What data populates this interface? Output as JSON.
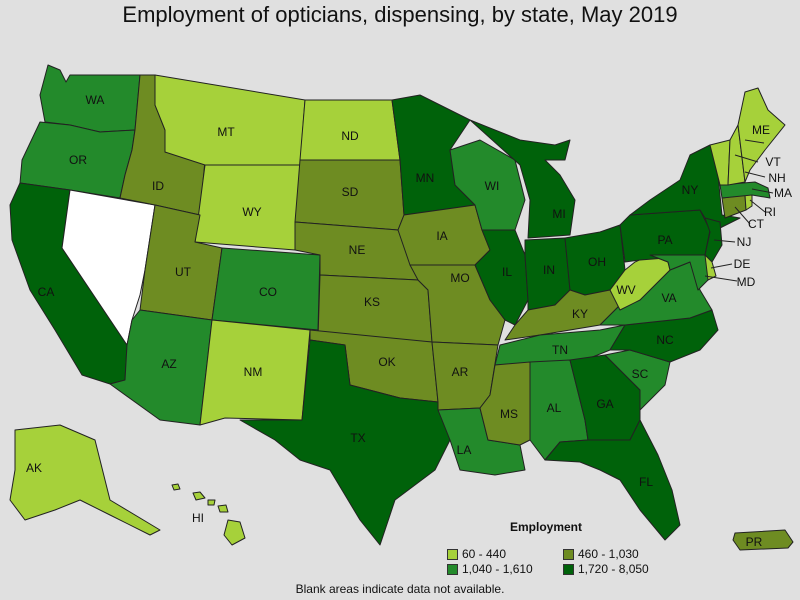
{
  "title": "Employment of opticians, dispensing, by state, May 2019",
  "footnote": "Blank areas indicate data not available.",
  "colors": {
    "background": "#e0e0e0",
    "tier1": "#a6d13a",
    "tier2": "#6e8c22",
    "tier3": "#238a2b",
    "tier4": "#00620a",
    "na": "#ffffff"
  },
  "legend": {
    "title": "Employment",
    "items": [
      {
        "label": "60 - 440",
        "tier": "tier1"
      },
      {
        "label": "460 - 1,030",
        "tier": "tier2"
      },
      {
        "label": "1,040 - 1,610",
        "tier": "tier3"
      },
      {
        "label": "1,720 - 8,050",
        "tier": "tier4"
      }
    ]
  },
  "states": {
    "WA": {
      "label": "WA",
      "tier": "tier3"
    },
    "OR": {
      "label": "OR",
      "tier": "tier3"
    },
    "CA": {
      "label": "CA",
      "tier": "tier4"
    },
    "NV": {
      "label": "",
      "tier": "na"
    },
    "ID": {
      "label": "ID",
      "tier": "tier2"
    },
    "MT": {
      "label": "MT",
      "tier": "tier1"
    },
    "WY": {
      "label": "WY",
      "tier": "tier1"
    },
    "UT": {
      "label": "UT",
      "tier": "tier2"
    },
    "AZ": {
      "label": "AZ",
      "tier": "tier3"
    },
    "CO": {
      "label": "CO",
      "tier": "tier3"
    },
    "NM": {
      "label": "NM",
      "tier": "tier1"
    },
    "ND": {
      "label": "ND",
      "tier": "tier1"
    },
    "SD": {
      "label": "SD",
      "tier": "tier2"
    },
    "NE": {
      "label": "NE",
      "tier": "tier2"
    },
    "KS": {
      "label": "KS",
      "tier": "tier2"
    },
    "OK": {
      "label": "OK",
      "tier": "tier2"
    },
    "TX": {
      "label": "TX",
      "tier": "tier4"
    },
    "MN": {
      "label": "MN",
      "tier": "tier4"
    },
    "IA": {
      "label": "IA",
      "tier": "tier2"
    },
    "MO": {
      "label": "MO",
      "tier": "tier2"
    },
    "AR": {
      "label": "AR",
      "tier": "tier2"
    },
    "LA": {
      "label": "LA",
      "tier": "tier3"
    },
    "WI": {
      "label": "WI",
      "tier": "tier3"
    },
    "IL": {
      "label": "IL",
      "tier": "tier4"
    },
    "MI": {
      "label": "MI",
      "tier": "tier4"
    },
    "IN": {
      "label": "IN",
      "tier": "tier4"
    },
    "OH": {
      "label": "OH",
      "tier": "tier4"
    },
    "KY": {
      "label": "KY",
      "tier": "tier2"
    },
    "TN": {
      "label": "TN",
      "tier": "tier3"
    },
    "MS": {
      "label": "MS",
      "tier": "tier2"
    },
    "AL": {
      "label": "AL",
      "tier": "tier3"
    },
    "GA": {
      "label": "GA",
      "tier": "tier4"
    },
    "FL": {
      "label": "FL",
      "tier": "tier4"
    },
    "SC": {
      "label": "SC",
      "tier": "tier3"
    },
    "NC": {
      "label": "NC",
      "tier": "tier4"
    },
    "VA": {
      "label": "VA",
      "tier": "tier3"
    },
    "WV": {
      "label": "WV",
      "tier": "tier1"
    },
    "PA": {
      "label": "PA",
      "tier": "tier4"
    },
    "NY": {
      "label": "NY",
      "tier": "tier4"
    },
    "NJ": {
      "label": "NJ",
      "tier": "tier4"
    },
    "DE": {
      "label": "DE",
      "tier": "tier1"
    },
    "MD": {
      "label": "MD",
      "tier": "tier3"
    },
    "CT": {
      "label": "CT",
      "tier": "tier2"
    },
    "RI": {
      "label": "RI",
      "tier": "tier1"
    },
    "MA": {
      "label": "MA",
      "tier": "tier3"
    },
    "VT": {
      "label": "VT",
      "tier": "tier1"
    },
    "NH": {
      "label": "NH",
      "tier": "tier1"
    },
    "ME": {
      "label": "ME",
      "tier": "tier1"
    },
    "AK": {
      "label": "AK",
      "tier": "tier1"
    },
    "HI": {
      "label": "HI",
      "tier": "tier1"
    },
    "PR": {
      "label": "PR",
      "tier": "tier2"
    }
  }
}
